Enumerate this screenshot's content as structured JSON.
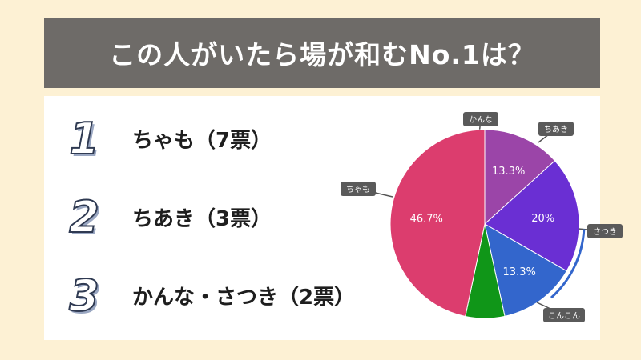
{
  "title": "この人がいたら場が和むNo.1は？",
  "ranking": [
    {
      "rank": "1",
      "label": "ちゃも（7票）"
    },
    {
      "rank": "2",
      "label": "ちあき（3票）"
    },
    {
      "rank": "3",
      "label": "かんな・さつき（2票）"
    }
  ],
  "chart_data": {
    "type": "pie",
    "title": "",
    "slices": [
      {
        "name": "かんな",
        "value": 13.3,
        "label": "13.3%",
        "color": "#9b45a8"
      },
      {
        "name": "ちあき",
        "value": 20.0,
        "label": "20%",
        "color": "#6a2fd3"
      },
      {
        "name": "さつき",
        "value": 13.3,
        "label": "13.3%",
        "color": "#3366cc"
      },
      {
        "name": "こんこん",
        "value": 6.7,
        "label": "",
        "color": "#109618"
      },
      {
        "name": "ちゃも",
        "value": 46.7,
        "label": "46.7%",
        "color": "#dc3d6e"
      }
    ]
  }
}
